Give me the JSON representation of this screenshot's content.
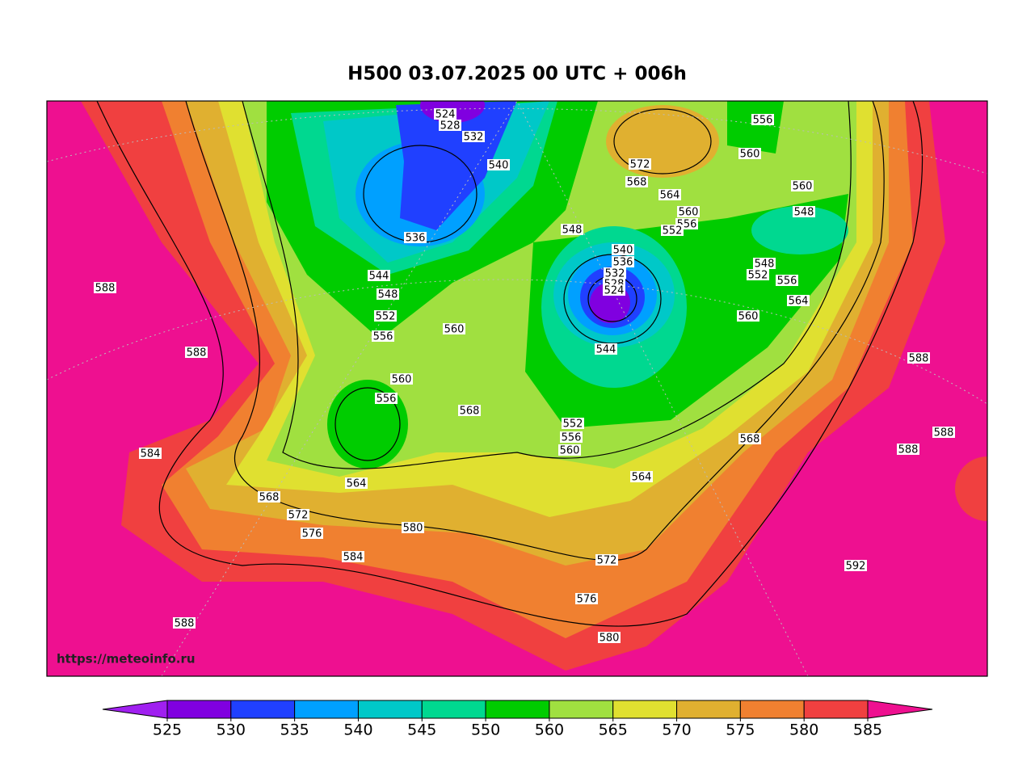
{
  "title": "H500  03.07.2025 00 UTC + 006h",
  "watermark": "https://meteoinfo.ru",
  "colorbar": {
    "ticks": [
      525,
      530,
      535,
      540,
      545,
      550,
      560,
      565,
      570,
      575,
      580,
      585
    ],
    "colors": [
      "#a020f0",
      "#8000e0",
      "#2040ff",
      "#00a0ff",
      "#00c8c8",
      "#00d890",
      "#00cc00",
      "#a0e040",
      "#e0e030",
      "#e0b030",
      "#f08030",
      "#f04040",
      "#ee1090"
    ]
  },
  "contour_labels": [
    524,
    528,
    532,
    540,
    536,
    544,
    548,
    552,
    556,
    560,
    560,
    556,
    568,
    564,
    568,
    572,
    576,
    580,
    584,
    588,
    588,
    584,
    588,
    572,
    568,
    564,
    560,
    556,
    552,
    548,
    540,
    536,
    532,
    528,
    524,
    544,
    552,
    556,
    560,
    564,
    572,
    576,
    580,
    556,
    560,
    560,
    548,
    548,
    552,
    556,
    564,
    560,
    568,
    588,
    588,
    588,
    592
  ]
}
